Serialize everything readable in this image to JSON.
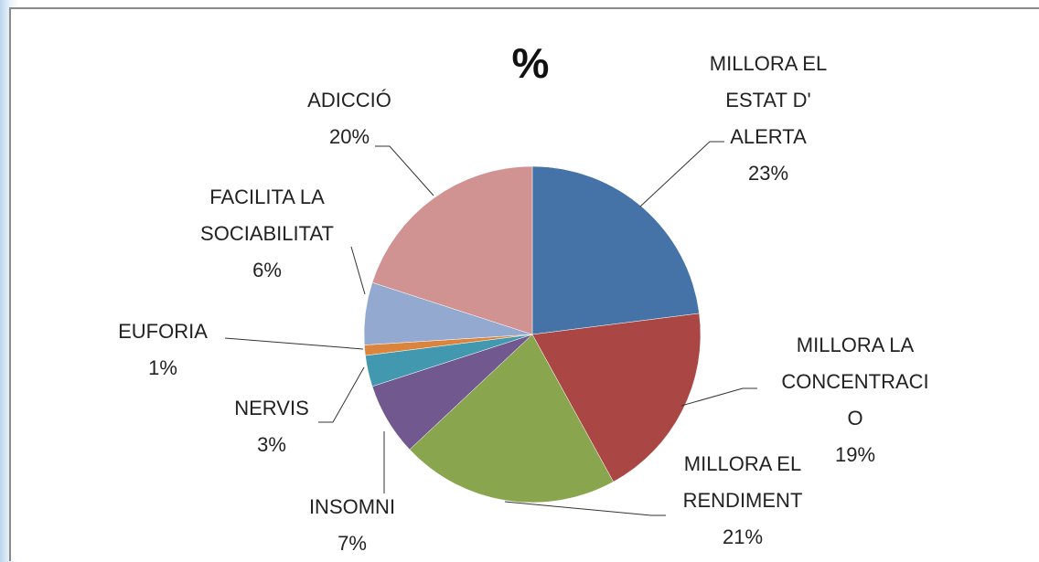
{
  "chart_data": {
    "type": "pie",
    "title": "%",
    "categories": [
      "MILLORA EL\nESTAT D'\nALERTA",
      "MILLORA LA\nCONCENTRACI\nO",
      "MILLORA EL\nRENDIMENT",
      "INSOMNI",
      "NERVIS",
      "EUFORIA",
      "FACILITA LA\nSOCIABILITAT",
      "ADICCIÓ"
    ],
    "values": [
      23,
      19,
      21,
      7,
      3,
      1,
      6,
      20
    ],
    "value_labels": [
      "23%",
      "19%",
      "21%",
      "7%",
      "3%",
      "1%",
      "6%",
      "20%"
    ],
    "colors": [
      "#4572a7",
      "#aa4643",
      "#89a54e",
      "#71588f",
      "#4198af",
      "#db843d",
      "#93a9cf",
      "#d19392"
    ]
  }
}
